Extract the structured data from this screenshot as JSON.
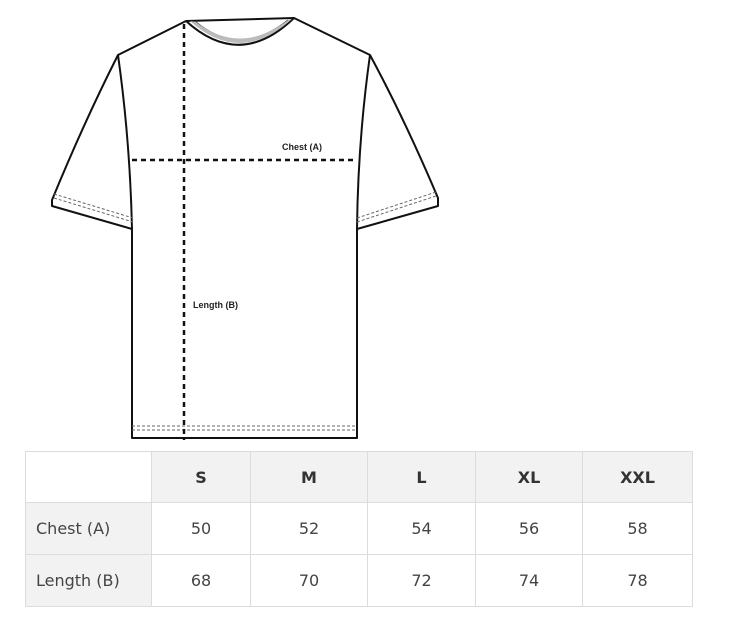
{
  "diagram": {
    "labels": {
      "chest": "Chest (A)",
      "length": "Length (B)"
    }
  },
  "size_table": {
    "columns": [
      "",
      "S",
      "M",
      "L",
      "XL",
      "XXL"
    ],
    "rows": [
      {
        "label": "Chest (A)",
        "values": [
          "50",
          "52",
          "54",
          "56",
          "58"
        ]
      },
      {
        "label": "Length (B)",
        "values": [
          "68",
          "70",
          "72",
          "74",
          "78"
        ]
      }
    ]
  }
}
